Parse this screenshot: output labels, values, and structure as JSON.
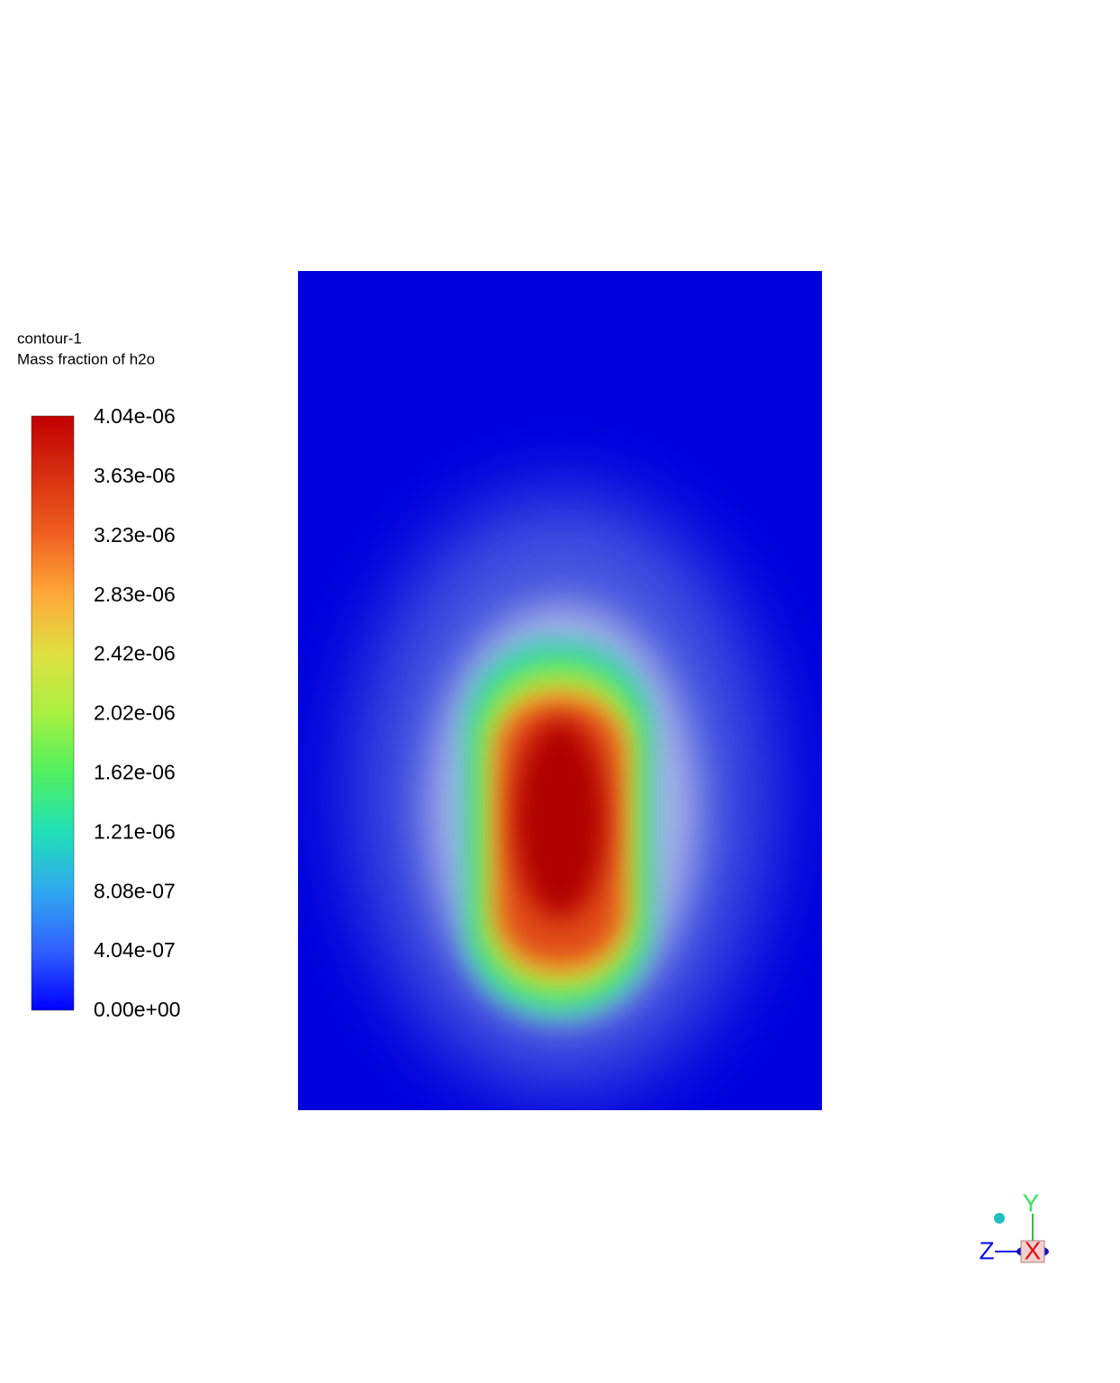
{
  "legend": {
    "title": "contour-1",
    "subtitle": "Mass fraction of h2o",
    "ticks": [
      "4.04e-06",
      "3.63e-06",
      "3.23e-06",
      "2.83e-06",
      "2.42e-06",
      "2.02e-06",
      "1.62e-06",
      "1.21e-06",
      "8.08e-07",
      "4.04e-07",
      "0.00e+00"
    ]
  },
  "triad": {
    "y": "Y",
    "z": "Z",
    "x": "X"
  }
}
